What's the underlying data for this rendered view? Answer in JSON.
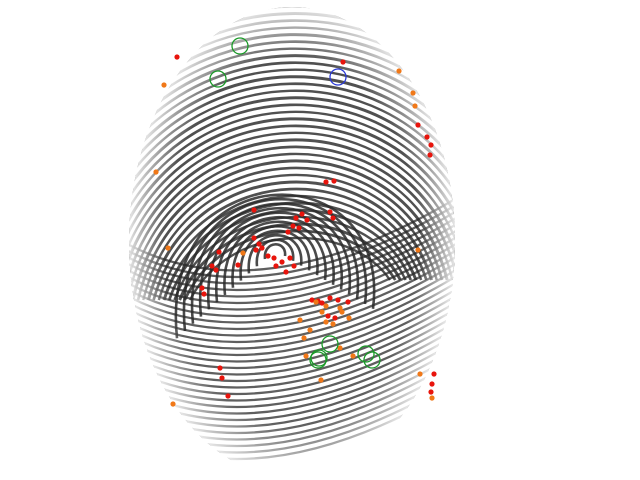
{
  "image": {
    "subject": "fingerprint-impression",
    "background_color": "#ffffff",
    "ridge_color": "#2a2a2a"
  },
  "markers": {
    "colors": {
      "red_dot": "#e8140c",
      "orange_dot": "#f07818",
      "green_circle": "#1a9a28",
      "blue_circle": "#2a3ad8"
    },
    "counts": {
      "green_circles": 7,
      "blue_circles": 1
    }
  }
}
